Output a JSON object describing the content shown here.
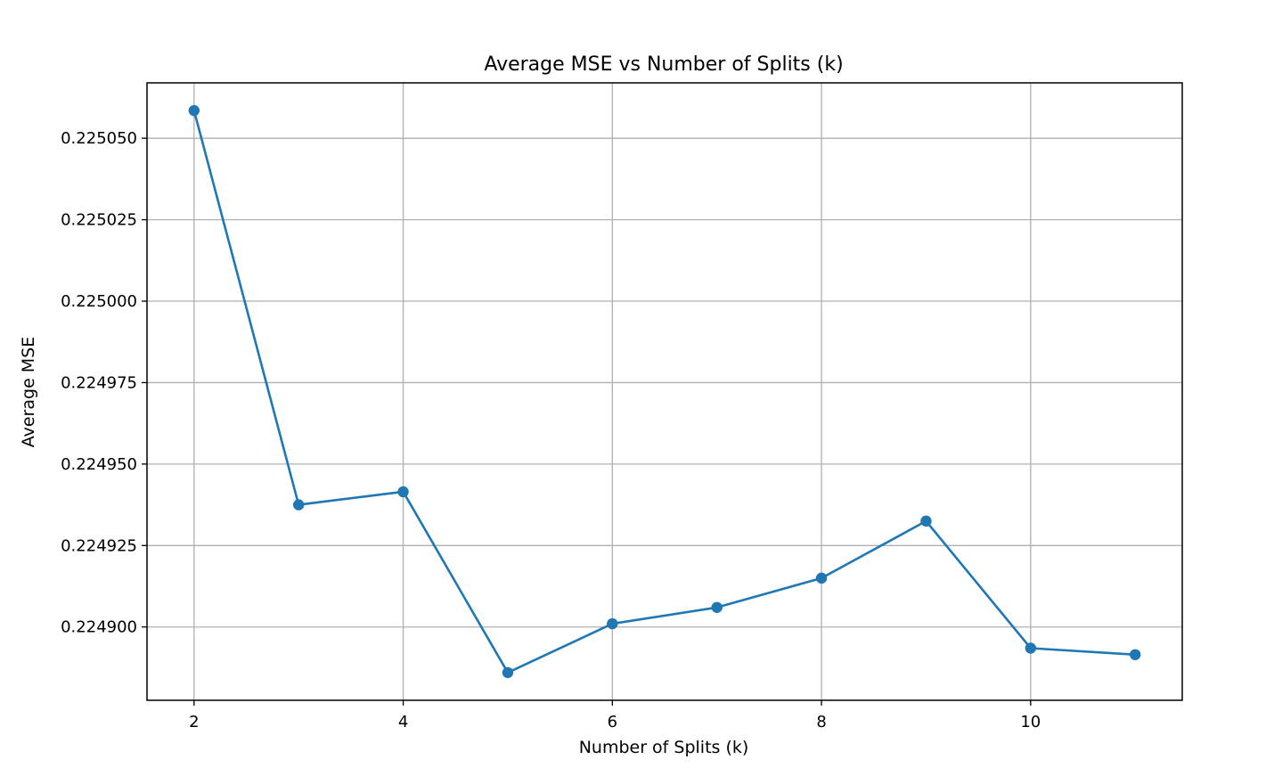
{
  "chart_data": {
    "type": "line",
    "title": "Average MSE vs Number of Splits (k)",
    "xlabel": "Number of Splits (k)",
    "ylabel": "Average MSE",
    "x": [
      2,
      3,
      4,
      5,
      6,
      7,
      8,
      9,
      10,
      11
    ],
    "series": [
      {
        "values": [
          0.2250585,
          0.2249375,
          0.2249415,
          0.224886,
          0.224901,
          0.224906,
          0.224915,
          0.2249325,
          0.2248935,
          0.2248915
        ],
        "color": "#1f77b4",
        "marker": "circle"
      }
    ],
    "xlim": [
      1.55,
      11.45
    ],
    "ylim": [
      0.2248775,
      0.225067
    ],
    "xticks": [
      2,
      4,
      6,
      8,
      10
    ],
    "xtick_labels": [
      "2",
      "4",
      "6",
      "8",
      "10"
    ],
    "yticks": [
      0.2249,
      0.224925,
      0.22495,
      0.224975,
      0.225,
      0.225025,
      0.22505
    ],
    "ytick_labels": [
      "0.224900",
      "0.224925",
      "0.224950",
      "0.224975",
      "0.225000",
      "0.225025",
      "0.225050"
    ],
    "grid": true
  }
}
